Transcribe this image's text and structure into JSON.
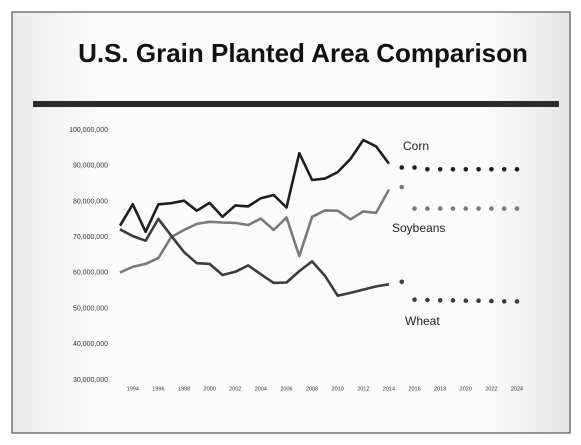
{
  "chart_data": {
    "type": "line",
    "title": "U.S. Grain Planted Area Comparison",
    "x": [
      1993,
      1994,
      1995,
      1996,
      1997,
      1998,
      1999,
      2000,
      2001,
      2002,
      2003,
      2004,
      2005,
      2006,
      2007,
      2008,
      2009,
      2010,
      2011,
      2012,
      2013,
      2014,
      2015,
      2016,
      2017,
      2018,
      2019,
      2020,
      2021,
      2022,
      2023,
      2024
    ],
    "xlim": [
      1993,
      2024
    ],
    "xticks": [
      1994,
      1996,
      1998,
      2000,
      2002,
      2004,
      2006,
      2008,
      2010,
      2012,
      2014,
      2016,
      2018,
      2020,
      2022,
      2024
    ],
    "ylim": [
      30000000,
      100000000
    ],
    "yticks": [
      {
        "value": 30000000,
        "label": "30,000,000"
      },
      {
        "value": 40000000,
        "label": "40,000,000"
      },
      {
        "value": 50000000,
        "label": "50,000,000"
      },
      {
        "value": 60000000,
        "label": "60,000,000"
      },
      {
        "value": 70000000,
        "label": "70,000,000"
      },
      {
        "value": 80000000,
        "label": "80,000,000"
      },
      {
        "value": 90000000,
        "label": "90,000,000"
      },
      {
        "value": 100000000,
        "label": "100,000,000"
      }
    ],
    "grid": false,
    "series": [
      {
        "name": "Corn",
        "color": "#1e1e1e",
        "values": [
          73200000,
          79200000,
          71500000,
          79200000,
          79500000,
          80200000,
          77400000,
          79600000,
          75700000,
          78900000,
          78600000,
          80900000,
          81800000,
          78300000,
          93500000,
          86000000,
          86400000,
          88200000,
          91900000,
          97200000,
          95400000,
          90600000,
          null,
          null,
          null,
          null,
          null,
          null,
          null,
          null,
          null,
          null
        ],
        "projection": [
          null,
          null,
          null,
          null,
          null,
          null,
          null,
          null,
          null,
          null,
          null,
          null,
          null,
          null,
          null,
          null,
          null,
          null,
          null,
          null,
          null,
          null,
          89500000,
          89500000,
          89000000,
          89000000,
          89000000,
          89000000,
          89000000,
          89000000,
          89000000,
          89000000
        ]
      },
      {
        "name": "Soybeans",
        "color": "#7a7a7a",
        "values": [
          60100000,
          61700000,
          62500000,
          64200000,
          70000000,
          72000000,
          73700000,
          74300000,
          74100000,
          74000000,
          73400000,
          75200000,
          72000000,
          75500000,
          64700000,
          75700000,
          77500000,
          77400000,
          75000000,
          77200000,
          76800000,
          83300000,
          null,
          null,
          null,
          null,
          null,
          null,
          null,
          null,
          null,
          null
        ],
        "projection": [
          null,
          null,
          null,
          null,
          null,
          null,
          null,
          null,
          null,
          null,
          null,
          null,
          null,
          null,
          null,
          null,
          null,
          null,
          null,
          null,
          null,
          null,
          84000000,
          78000000,
          78000000,
          78000000,
          78000000,
          78000000,
          78000000,
          78000000,
          78000000,
          78000000
        ]
      },
      {
        "name": "Wheat",
        "color": "#3c3c3c",
        "values": [
          72200000,
          70300000,
          69000000,
          75100000,
          70400000,
          65800000,
          62700000,
          62500000,
          59400000,
          60300000,
          62100000,
          59600000,
          57200000,
          57300000,
          60500000,
          63200000,
          59200000,
          53600000,
          54400000,
          55300000,
          56200000,
          56800000,
          null,
          null,
          null,
          null,
          null,
          null,
          null,
          null,
          null,
          null
        ],
        "projection": [
          null,
          null,
          null,
          null,
          null,
          null,
          null,
          null,
          null,
          null,
          null,
          null,
          null,
          null,
          null,
          null,
          null,
          null,
          null,
          null,
          null,
          null,
          57500000,
          52500000,
          52400000,
          52300000,
          52300000,
          52200000,
          52200000,
          52100000,
          52000000,
          52000000
        ]
      }
    ]
  }
}
